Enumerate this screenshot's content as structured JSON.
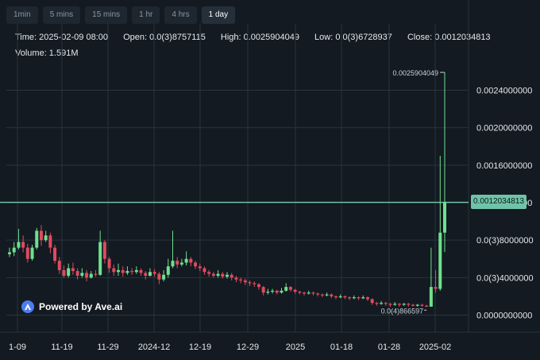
{
  "tabs": {
    "items": [
      "1min",
      "5 mins",
      "15 mins",
      "1 hr",
      "4 hrs",
      "1 day"
    ],
    "active": "1 day"
  },
  "info": {
    "time": "Time: 2025-02-09 08:00",
    "open": "Open: 0.0(3)8757115",
    "high": "High: 0.0025904049",
    "low": "Low: 0.0(3)6728937",
    "close": "Close: 0.0012034813",
    "volume": "Volume: 1.591M"
  },
  "brand": {
    "text": "Powered by Ave.ai"
  },
  "current_price_label": "0.0012034813",
  "colors": {
    "up": "#6fe08f",
    "down": "#e04a5f",
    "current_line": "#6fc3a8",
    "grid": "#2a343f",
    "background": "#131a21"
  },
  "chart_data": {
    "type": "candlestick",
    "y_ticks": [
      {
        "value": 0.0024,
        "label": "0.0024000000"
      },
      {
        "value": 0.002,
        "label": "0.0020000000"
      },
      {
        "value": 0.0016,
        "label": "0.0016000000"
      },
      {
        "value": 0.0012,
        "label": "0.0012000000"
      },
      {
        "value": 0.0008,
        "label": "0.0(3)8000000"
      },
      {
        "value": 0.0004,
        "label": "0.0(3)4000000"
      },
      {
        "value": 0.0,
        "label": "0.0000000000"
      }
    ],
    "x_ticks": [
      "1-09",
      "11-19",
      "11-29",
      "2024-12",
      "12-19",
      "12-29",
      "2025",
      "01-18",
      "01-28",
      "2025-02"
    ],
    "ylim": [
      -0.0002,
      0.0028
    ],
    "annotations": {
      "max_label": "0.0025904049",
      "min_label": "0.0(4)866597"
    },
    "current_price": 0.0012034813,
    "candles": [
      [
        0.00065,
        0.00067,
        0.00072,
        0.00062
      ],
      [
        0.00067,
        0.00072,
        0.00078,
        0.00063
      ],
      [
        0.00072,
        0.00078,
        0.00092,
        0.0007
      ],
      [
        0.00078,
        0.00072,
        0.00085,
        0.00067
      ],
      [
        0.00072,
        0.0006,
        0.00076,
        0.00056
      ],
      [
        0.0006,
        0.00072,
        0.00075,
        0.00058
      ],
      [
        0.00072,
        0.0009,
        0.00093,
        0.0007
      ],
      [
        0.0009,
        0.0008,
        0.00096,
        0.00074
      ],
      [
        0.0008,
        0.00085,
        0.0009,
        0.00078
      ],
      [
        0.00085,
        0.00072,
        0.00088,
        0.00066
      ],
      [
        0.00072,
        0.00058,
        0.00075,
        0.00055
      ],
      [
        0.00058,
        0.00048,
        0.00062,
        0.00044
      ],
      [
        0.00048,
        0.00042,
        0.00053,
        0.0004
      ],
      [
        0.00042,
        0.0005,
        0.00055,
        0.0004
      ],
      [
        0.0005,
        0.00047,
        0.00056,
        0.00043
      ],
      [
        0.00047,
        0.00042,
        0.0005,
        0.00038
      ],
      [
        0.00042,
        0.00045,
        0.0005,
        0.0004
      ],
      [
        0.00045,
        0.0004,
        0.00048,
        0.00036
      ],
      [
        0.0004,
        0.00044,
        0.00047,
        0.00039
      ],
      [
        0.00044,
        0.00043,
        0.00048,
        0.00041
      ],
      [
        0.00043,
        0.00078,
        0.0009,
        0.00042
      ],
      [
        0.00078,
        0.0006,
        0.0008,
        0.00055
      ],
      [
        0.0006,
        0.0005,
        0.00062,
        0.00045
      ],
      [
        0.0005,
        0.00046,
        0.00054,
        0.00042
      ],
      [
        0.00046,
        0.00048,
        0.00055,
        0.00042
      ],
      [
        0.00048,
        0.00045,
        0.00052,
        0.00041
      ],
      [
        0.00045,
        0.00047,
        0.00052,
        0.00043
      ],
      [
        0.00047,
        0.00046,
        0.0005,
        0.00043
      ],
      [
        0.00046,
        0.00048,
        0.00052,
        0.00044
      ],
      [
        0.00048,
        0.00045,
        0.0005,
        0.00042
      ],
      [
        0.00045,
        0.00042,
        0.00047,
        0.00038
      ],
      [
        0.00042,
        0.00046,
        0.0005,
        0.00041
      ],
      [
        0.00046,
        0.00044,
        0.00049,
        0.00041
      ],
      [
        0.00044,
        0.00038,
        0.00046,
        0.00033
      ],
      [
        0.00038,
        0.00043,
        0.00048,
        0.00036
      ],
      [
        0.00043,
        0.00052,
        0.0006,
        0.0004
      ],
      [
        0.00052,
        0.00058,
        0.0009,
        0.0005
      ],
      [
        0.00058,
        0.00054,
        0.00062,
        0.0005
      ],
      [
        0.00054,
        0.00056,
        0.0006,
        0.00052
      ],
      [
        0.00056,
        0.0006,
        0.00068,
        0.00053
      ],
      [
        0.0006,
        0.00056,
        0.00062,
        0.00052
      ],
      [
        0.00056,
        0.00052,
        0.00058,
        0.00049
      ],
      [
        0.00052,
        0.0005,
        0.00055,
        0.00047
      ],
      [
        0.0005,
        0.00046,
        0.00052,
        0.00043
      ],
      [
        0.00046,
        0.00044,
        0.00048,
        0.00041
      ],
      [
        0.00044,
        0.00042,
        0.00046,
        0.0004
      ],
      [
        0.00042,
        0.00044,
        0.00048,
        0.0004
      ],
      [
        0.00044,
        0.00041,
        0.00046,
        0.00039
      ],
      [
        0.00041,
        0.00043,
        0.00046,
        0.00039
      ],
      [
        0.00043,
        0.0004,
        0.00045,
        0.00037
      ],
      [
        0.0004,
        0.00038,
        0.00042,
        0.00035
      ],
      [
        0.00038,
        0.00037,
        0.0004,
        0.00034
      ],
      [
        0.00037,
        0.00035,
        0.00039,
        0.00032
      ],
      [
        0.00035,
        0.00034,
        0.00037,
        0.00031
      ],
      [
        0.00034,
        0.00033,
        0.00036,
        0.0003
      ],
      [
        0.00033,
        0.0003,
        0.00034,
        0.00027
      ],
      [
        0.0003,
        0.00024,
        0.00031,
        0.00021
      ],
      [
        0.00024,
        0.00025,
        0.00028,
        0.00022
      ],
      [
        0.00025,
        0.00026,
        0.00028,
        0.00023
      ],
      [
        0.00026,
        0.00024,
        0.00027,
        0.00022
      ],
      [
        0.00024,
        0.00026,
        0.00029,
        0.00023
      ],
      [
        0.00026,
        0.0003,
        0.00034,
        0.00025
      ],
      [
        0.0003,
        0.00027,
        0.00031,
        0.00025
      ],
      [
        0.00027,
        0.00025,
        0.00028,
        0.00023
      ],
      [
        0.00025,
        0.00024,
        0.00026,
        0.00022
      ],
      [
        0.00024,
        0.00023,
        0.00025,
        0.00021
      ],
      [
        0.00023,
        0.00024,
        0.00026,
        0.00022
      ],
      [
        0.00024,
        0.00023,
        0.00025,
        0.00021
      ],
      [
        0.00023,
        0.00022,
        0.00024,
        0.0002
      ],
      [
        0.00022,
        0.00021,
        0.00023,
        0.00019
      ],
      [
        0.00021,
        0.00022,
        0.00024,
        0.0002
      ],
      [
        0.00022,
        0.0002,
        0.00023,
        0.00018
      ],
      [
        0.0002,
        0.00019,
        0.00021,
        0.00017
      ],
      [
        0.00019,
        0.0002,
        0.00022,
        0.00018
      ],
      [
        0.0002,
        0.00019,
        0.00021,
        0.00017
      ],
      [
        0.00019,
        0.00018,
        0.0002,
        0.00016
      ],
      [
        0.00018,
        0.00019,
        0.00021,
        0.00017
      ],
      [
        0.00019,
        0.00018,
        0.0002,
        0.00016
      ],
      [
        0.00018,
        0.00019,
        0.00021,
        0.00017
      ],
      [
        0.00019,
        0.00017,
        0.0002,
        0.00015
      ],
      [
        0.00017,
        0.00013,
        0.00018,
        0.00011
      ],
      [
        0.00013,
        0.00012,
        0.00014,
        0.0001
      ],
      [
        0.00012,
        0.00013,
        0.00015,
        0.00011
      ],
      [
        0.00013,
        0.00012,
        0.00014,
        0.0001
      ],
      [
        0.00012,
        0.00011,
        0.00013,
        9e-05
      ],
      [
        0.00011,
        0.00012,
        0.00014,
        0.0001
      ],
      [
        0.00012,
        0.00011,
        0.00013,
        9e-05
      ],
      [
        0.00011,
        0.00012,
        0.00013,
        0.0001
      ],
      [
        0.00012,
        0.00011,
        0.00013,
        9e-05
      ],
      [
        0.00011,
        0.0001,
        0.00012,
        9e-05
      ],
      [
        0.0001,
        0.00011,
        0.00012,
        9e-05
      ],
      [
        0.00011,
        0.0001,
        0.00012,
        9e-05
      ],
      [
        0.0001,
        9e-05,
        0.00011,
        8.66597e-05
      ],
      [
        9e-05,
        0.0003,
        0.00072,
        9e-05
      ],
      [
        0.0003,
        0.00028,
        0.00048,
        0.00024
      ],
      [
        0.00028,
        0.00088,
        0.0017,
        0.00026
      ],
      [
        0.00088,
        0.00120348,
        0.0025904,
        0.00067289
      ]
    ]
  }
}
